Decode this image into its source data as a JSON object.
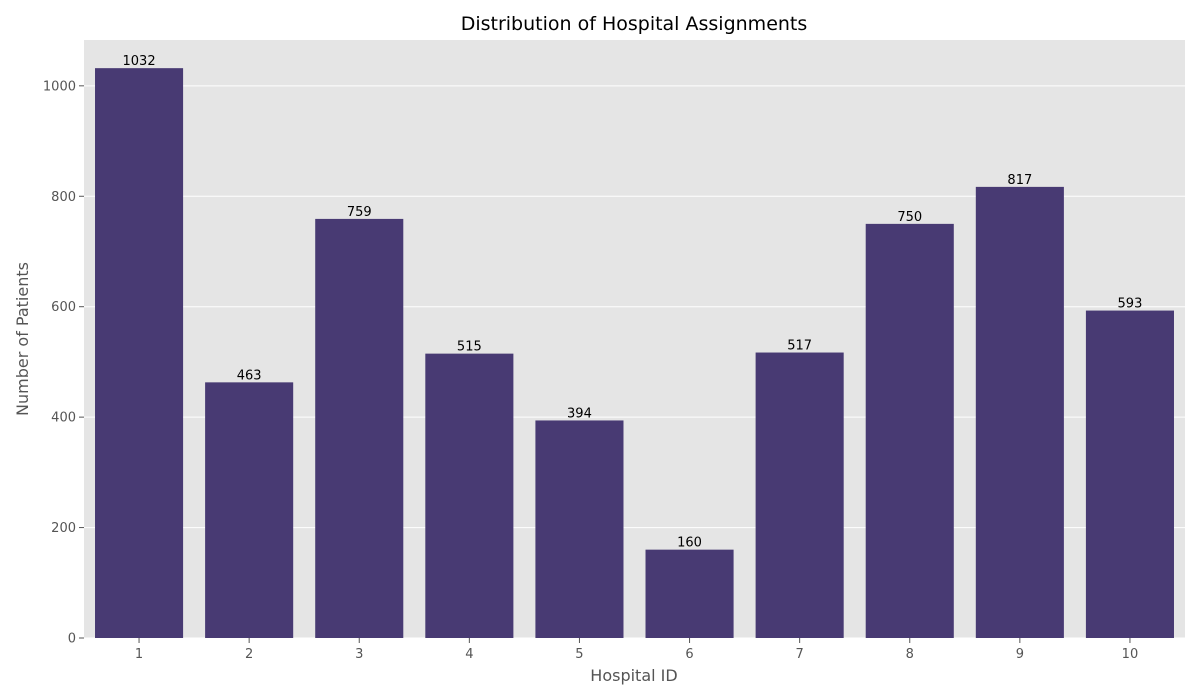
{
  "chart_data": {
    "type": "bar",
    "title": "Distribution of Hospital Assignments",
    "xlabel": "Hospital ID",
    "ylabel": "Number of Patients",
    "categories": [
      "1",
      "2",
      "3",
      "4",
      "5",
      "6",
      "7",
      "8",
      "9",
      "10"
    ],
    "values": [
      1032,
      463,
      759,
      515,
      394,
      160,
      517,
      750,
      817,
      593
    ],
    "ylim": [
      0,
      1083
    ],
    "yticks": [
      0,
      200,
      400,
      600,
      800,
      1000
    ],
    "grid": true,
    "legend": "none",
    "show_data_labels": true
  },
  "colors": {
    "bar": "#483a73",
    "plot_background": "#e5e5e5",
    "grid": "#ffffff"
  }
}
